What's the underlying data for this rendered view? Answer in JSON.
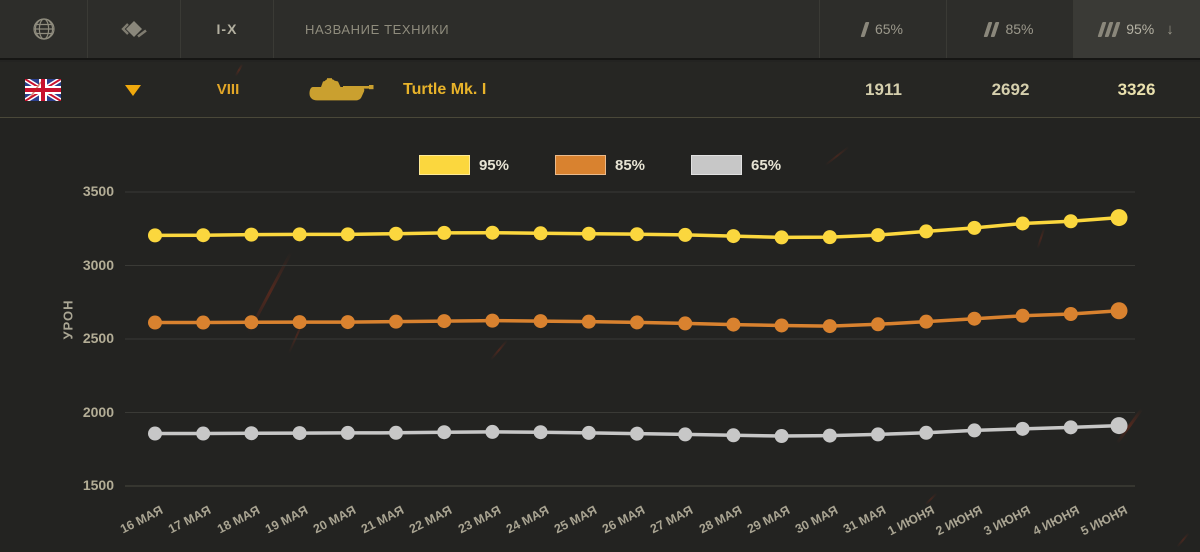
{
  "header": {
    "tier_label": "I-X",
    "vehicle_name_label": "НАЗВАНИЕ ТЕХНИКИ",
    "columns": [
      {
        "label": "65%",
        "slashes": 1,
        "active": false
      },
      {
        "label": "85%",
        "slashes": 2,
        "active": false
      },
      {
        "label": "95%",
        "slashes": 3,
        "active": true
      }
    ]
  },
  "icons": {
    "sort_arrow": "↓"
  },
  "vehicle_row": {
    "nation": "uk-flag",
    "tier": "VIII",
    "name": "Turtle Mk. I",
    "values": {
      "p65": "1911",
      "p85": "2692",
      "p95": "3326"
    }
  },
  "chart_data": {
    "type": "line",
    "title": "",
    "xlabel": "",
    "ylabel": "УРОН",
    "ylim": [
      1500,
      3600
    ],
    "yticks": [
      3500,
      3000,
      2500,
      2000,
      1500
    ],
    "grid": true,
    "legend_position": "top",
    "categories": [
      "16 МАЯ",
      "17 МАЯ",
      "18 МАЯ",
      "19 МАЯ",
      "20 МАЯ",
      "21 МАЯ",
      "22 МАЯ",
      "23 МАЯ",
      "24 МАЯ",
      "25 МАЯ",
      "26 МАЯ",
      "27 МАЯ",
      "28 МАЯ",
      "29 МАЯ",
      "30 МАЯ",
      "31 МАЯ",
      "1 ИЮНЯ",
      "2 ИЮНЯ",
      "3 ИЮНЯ",
      "4 ИЮНЯ",
      "5 ИЮНЯ"
    ],
    "series": [
      {
        "name": "95%",
        "color": "#fbd73e",
        "values": [
          3205,
          3206,
          3210,
          3212,
          3212,
          3216,
          3222,
          3223,
          3219,
          3216,
          3213,
          3208,
          3200,
          3191,
          3193,
          3207,
          3232,
          3256,
          3286,
          3301,
          3326
        ]
      },
      {
        "name": "85%",
        "color": "#d9822f",
        "values": [
          2612,
          2612,
          2614,
          2615,
          2615,
          2618,
          2622,
          2625,
          2622,
          2618,
          2613,
          2606,
          2598,
          2592,
          2588,
          2600,
          2618,
          2638,
          2658,
          2670,
          2692
        ]
      },
      {
        "name": "65%",
        "color": "#c7c7c7",
        "values": [
          1857,
          1857,
          1859,
          1860,
          1861,
          1862,
          1866,
          1868,
          1866,
          1861,
          1856,
          1851,
          1845,
          1840,
          1843,
          1851,
          1862,
          1878,
          1889,
          1899,
          1911
        ]
      }
    ]
  },
  "colors": {
    "accent_gold": "#e8b32a",
    "tier_gold": "#e3a727",
    "value_cream": "#d5cfad",
    "value_active_cream": "#e9e0ad",
    "grid_line": "#3a3a36",
    "background": "#232321",
    "bar_background": "#2d2d2a"
  }
}
